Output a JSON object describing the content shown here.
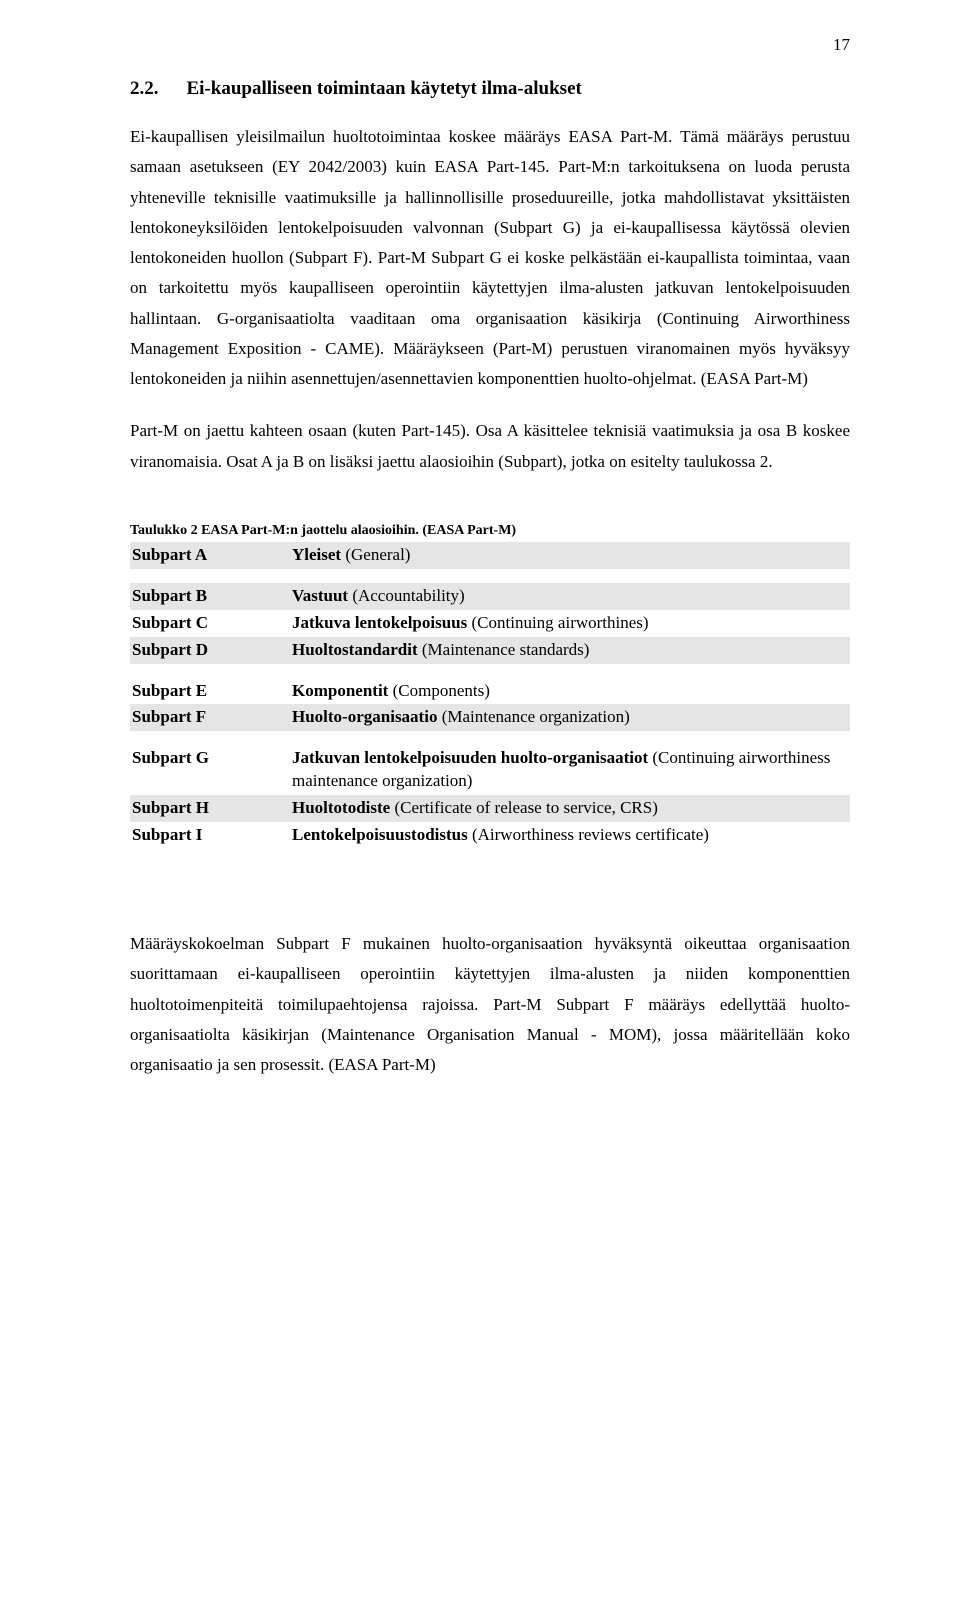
{
  "pageNumber": "17",
  "heading": {
    "num": "2.2.",
    "title": "Ei-kaupalliseen toimintaan käytetyt ilma-alukset"
  },
  "paragraphs": {
    "p1": "Ei-kaupallisen yleisilmailun huoltotoimintaa koskee määräys EASA Part-M. Tämä määräys perustuu samaan asetukseen (EY 2042/2003) kuin EASA Part-145. Part-M:n tarkoituksena on luoda perusta yhteneville teknisille vaatimuksille ja hallinnollisille proseduureille, jotka mahdollistavat yksittäisten lentokoneyksilöiden lentokelpoisuuden valvonnan (Subpart G) ja ei-kaupallisessa käytössä olevien lentokoneiden huollon (Subpart F). Part-M Subpart G  ei koske pelkästään ei-kaupallista toimintaa, vaan on tarkoitettu myös kaupalliseen operointiin käytettyjen ilma-alusten jatkuvan lentokelpoisuuden hallintaan. G-organisaatiolta vaaditaan oma organisaation käsikirja (Continuing Airworthiness Management Exposition - CAME). Määräykseen (Part-M) perustuen viranomainen myös hyväksyy lentokoneiden ja niihin asennettujen/asennettavien komponenttien huolto-ohjelmat. (EASA Part-M)",
    "p2": "Part-M on jaettu kahteen osaan (kuten Part-145). Osa A käsittelee teknisiä vaatimuksia ja osa B koskee viranomaisia. Osat A ja B on lisäksi jaettu alaosioihin (Subpart), jotka on esitelty taulukossa 2.",
    "p3": "Määräyskokoelman Subpart F mukainen huolto-organisaation hyväksyntä oikeuttaa organisaation suorittamaan ei-kaupalliseen operointiin käytettyjen ilma-alusten ja niiden komponenttien huoltotoimenpiteitä toimilupaehtojensa rajoissa. Part-M Subpart F määräys edellyttää huolto-organisaatiolta käsikirjan (Maintenance Organisation Manual - MOM), jossa määritellään koko organisaatio ja sen prosessit. (EASA Part-M)"
  },
  "tableCaption": "Taulukko 2 EASA Part-M:n jaottelu alaosioihin. (EASA Part-M)",
  "table": {
    "rows": [
      {
        "a": "Subpart A",
        "term": "Yleiset",
        "rest": " (General)",
        "shaded": true,
        "group": 0
      },
      {
        "a": "Subpart B",
        "term": "Vastuut",
        "rest": " (Accountability)",
        "shaded": true,
        "group": 1
      },
      {
        "a": "Subpart C",
        "term": "Jatkuva lentokelpoisuus",
        "rest": " (Continuing airworthines)",
        "shaded": false,
        "group": 1
      },
      {
        "a": "Subpart D",
        "term": "Huoltostandardit",
        "rest": " (Maintenance standards)",
        "shaded": true,
        "group": 1
      },
      {
        "a": "Subpart E",
        "term": "Komponentit",
        "rest": " (Components)",
        "shaded": false,
        "group": 2
      },
      {
        "a": "Subpart F",
        "term": "Huolto-organisaatio",
        "rest": " (Maintenance organization)",
        "shaded": true,
        "group": 2
      },
      {
        "a": "Subpart G",
        "term": "Jatkuvan lentokelpoisuuden huolto-organisaatiot",
        "rest": " (Continuing airworthiness maintenance organization)",
        "shaded": false,
        "group": 3
      },
      {
        "a": "Subpart H",
        "term": "Huoltotodiste",
        "rest": " (Certificate of release to service, CRS)",
        "shaded": true,
        "group": 3
      },
      {
        "a": "Subpart I",
        "term": "Lentokelpoisuustodistus",
        "rest": " (Airworthiness reviews certificate)",
        "shaded": false,
        "group": 3
      }
    ]
  }
}
